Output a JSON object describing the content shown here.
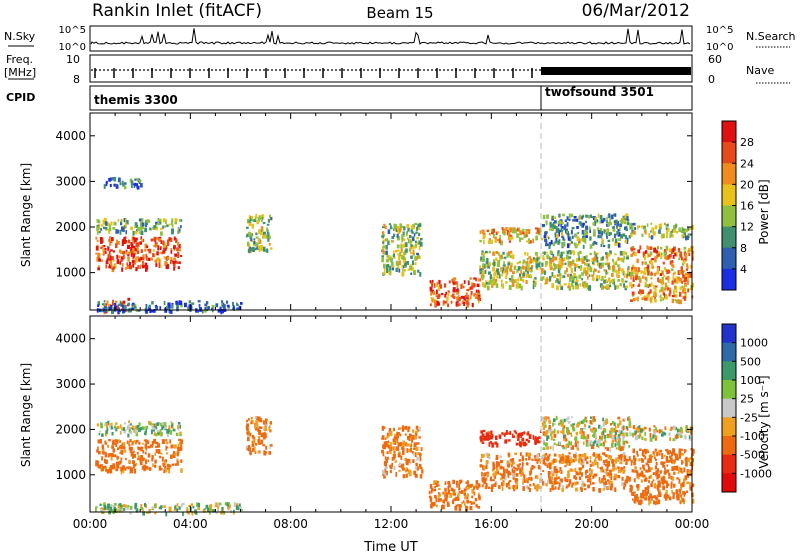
{
  "header": {
    "station": "Rankin Inlet (fitACF)",
    "beam": "Beam 15",
    "date": "06/Mar/2012"
  },
  "status_panels": {
    "nsky_label": "N.Sky",
    "nsearch_label": "N.Search",
    "nsky_ticks_left": [
      "10^5",
      "10^0"
    ],
    "nsky_ticks_right": [
      "10^5",
      "10^0"
    ],
    "freq_label": "Freq.",
    "freq_unit": "[MHz]",
    "freq_ticks": [
      "10",
      "8"
    ],
    "nave_label": "Nave",
    "nave_ticks": [
      "60",
      "0"
    ],
    "cpid_label": "CPID",
    "programs": [
      {
        "name": "themis 3300",
        "start_hour": 0
      },
      {
        "name": "twofsound 3501",
        "start_hour": 18
      }
    ]
  },
  "chart_data": [
    {
      "type": "heatmap",
      "panel": "power",
      "ylabel": "Slant Range [km]",
      "xlabel": "",
      "xlim": [
        0,
        24
      ],
      "ylim": [
        180,
        4500
      ],
      "yticks": [
        1000,
        2000,
        3000,
        4000
      ],
      "colorbar": {
        "label": "Power [dB]",
        "ticks": [
          4,
          8,
          12,
          16,
          20,
          24,
          28
        ],
        "range": [
          0,
          30
        ],
        "colors": [
          "#1a2ee6",
          "#2f5fb0",
          "#3f8f70",
          "#8fc13f",
          "#e8c21a",
          "#f08c1e",
          "#e64a19",
          "#e01010"
        ]
      },
      "echo_regions": [
        {
          "x": [
            0.2,
            3.6
          ],
          "y": [
            1100,
            1800
          ],
          "level": 26
        },
        {
          "x": [
            0.2,
            3.6
          ],
          "y": [
            1900,
            2200
          ],
          "level": 12
        },
        {
          "x": [
            0.5,
            1.5
          ],
          "y": [
            180,
            450
          ],
          "level": 26
        },
        {
          "x": [
            0.2,
            6.0
          ],
          "y": [
            180,
            400
          ],
          "level": 6
        },
        {
          "x": [
            0.5,
            2.0
          ],
          "y": [
            2900,
            3100
          ],
          "level": 6
        },
        {
          "x": [
            6.2,
            7.2
          ],
          "y": [
            1500,
            2300
          ],
          "level": 14
        },
        {
          "x": [
            11.6,
            13.2
          ],
          "y": [
            1000,
            2100
          ],
          "level": 14
        },
        {
          "x": [
            13.5,
            15.5
          ],
          "y": [
            300,
            900
          ],
          "level": 26
        },
        {
          "x": [
            15.5,
            18.0
          ],
          "y": [
            1700,
            2000
          ],
          "level": 20
        },
        {
          "x": [
            15.5,
            21.5
          ],
          "y": [
            700,
            1500
          ],
          "level": 16
        },
        {
          "x": [
            18.0,
            21.5
          ],
          "y": [
            1600,
            2300
          ],
          "level": 10
        },
        {
          "x": [
            21.5,
            24.0
          ],
          "y": [
            400,
            1600
          ],
          "level": 22
        },
        {
          "x": [
            21.5,
            24.0
          ],
          "y": [
            1800,
            2100
          ],
          "level": 14
        }
      ]
    },
    {
      "type": "heatmap",
      "panel": "velocity",
      "ylabel": "Slant Range [km]",
      "xlabel": "Time UT",
      "xlim": [
        0,
        24
      ],
      "ylim": [
        180,
        4500
      ],
      "yticks": [
        1000,
        2000,
        3000,
        4000
      ],
      "xticks": [
        "00:00",
        "04:00",
        "08:00",
        "12:00",
        "16:00",
        "20:00",
        "00:00"
      ],
      "colorbar": {
        "label": "Velocity [m s⁻¹]",
        "ticks": [
          "1000",
          "500",
          "100",
          "25",
          "-25",
          "-100",
          "-500",
          "-1000"
        ],
        "range": [
          -1200,
          1200
        ],
        "colors": [
          "#2233cc",
          "#2e6aa8",
          "#3c9a6a",
          "#7cc23a",
          "#c8c8c8",
          "#f0a020",
          "#ee6a10",
          "#e82a10",
          "#e00a0a"
        ]
      },
      "echo_regions": [
        {
          "x": [
            0.2,
            3.6
          ],
          "y": [
            1100,
            1800
          ],
          "level": -200
        },
        {
          "x": [
            0.2,
            3.6
          ],
          "y": [
            1900,
            2200
          ],
          "level": 50
        },
        {
          "x": [
            0.2,
            6.0
          ],
          "y": [
            180,
            400
          ],
          "level": 50
        },
        {
          "x": [
            6.2,
            7.2
          ],
          "y": [
            1500,
            2300
          ],
          "level": -150
        },
        {
          "x": [
            11.6,
            13.2
          ],
          "y": [
            1000,
            2100
          ],
          "level": -150
        },
        {
          "x": [
            13.5,
            15.5
          ],
          "y": [
            300,
            900
          ],
          "level": -200
        },
        {
          "x": [
            15.5,
            18.0
          ],
          "y": [
            1700,
            2000
          ],
          "level": -600
        },
        {
          "x": [
            15.5,
            21.5
          ],
          "y": [
            700,
            1500
          ],
          "level": -150
        },
        {
          "x": [
            18.0,
            21.5
          ],
          "y": [
            1600,
            2300
          ],
          "level": 0
        },
        {
          "x": [
            21.5,
            24.0
          ],
          "y": [
            400,
            1600
          ],
          "level": -200
        },
        {
          "x": [
            21.5,
            24.0
          ],
          "y": [
            1800,
            2100
          ],
          "level": 0
        }
      ]
    }
  ]
}
